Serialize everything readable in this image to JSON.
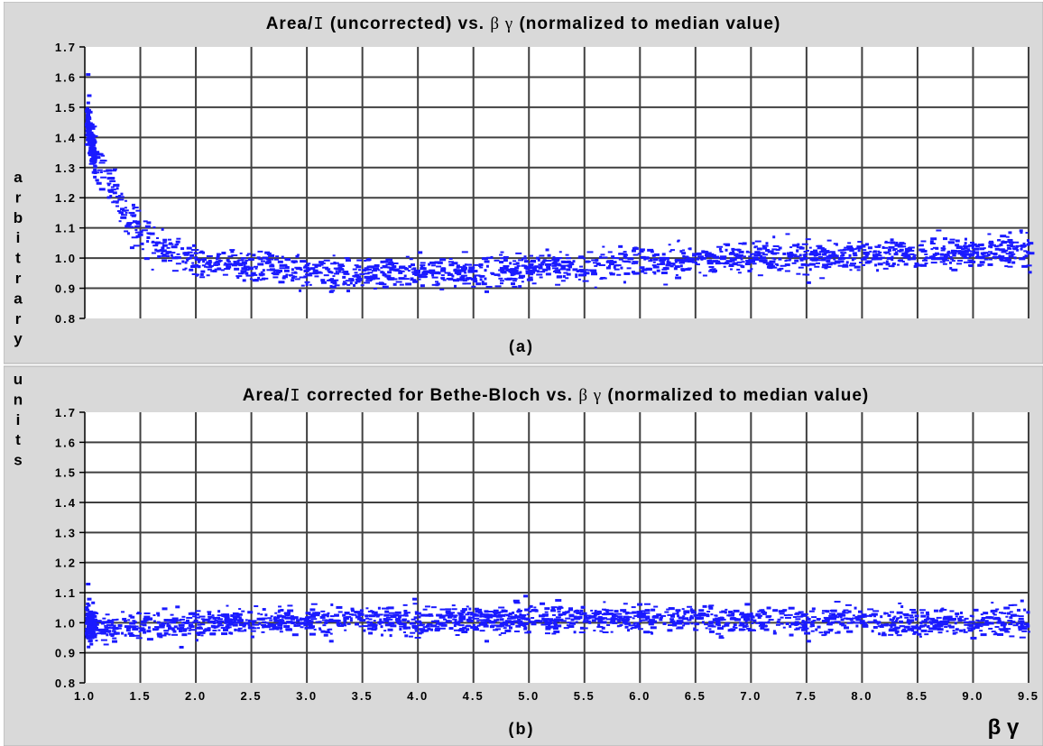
{
  "figure": {
    "ylabel_letters": [
      "a",
      "r",
      "b",
      "i",
      "t",
      "r",
      "a",
      "r",
      "y",
      "",
      "u",
      "n",
      "i",
      "t",
      "s"
    ],
    "xaxis_symbol": "β γ"
  },
  "chart_data": [
    {
      "type": "scatter",
      "title": "Area/I (uncorrected) vs. β γ (normalized to median value)",
      "title_parts": {
        "prefix": "Area/",
        "symbol": "I",
        "rest": " (uncorrected) vs. ",
        "greek": "β γ",
        "suffix": " (normalized to median value)"
      },
      "panel_label": "(a)",
      "xlabel": "β γ",
      "ylabel": "arbitrary units",
      "xlim": [
        1.0,
        9.5
      ],
      "ylim": [
        0.8,
        1.7
      ],
      "xticks": [
        "1.0",
        "1.5",
        "2.0",
        "2.5",
        "3.0",
        "3.5",
        "4.0",
        "4.5",
        "5.0",
        "5.5",
        "6.0",
        "6.5",
        "7.0",
        "7.5",
        "8.0",
        "8.5",
        "9.0",
        "9.5"
      ],
      "xtick_labels_visible": false,
      "yticks": [
        "0.8",
        "0.9",
        "1.0",
        "1.1",
        "1.2",
        "1.3",
        "1.4",
        "1.5",
        "1.6",
        "1.7"
      ],
      "grid": true,
      "marker_color": "#1a1aff",
      "trend": [
        [
          1.0,
          1.45
        ],
        [
          1.05,
          1.38
        ],
        [
          1.1,
          1.31
        ],
        [
          1.2,
          1.24
        ],
        [
          1.3,
          1.18
        ],
        [
          1.4,
          1.12
        ],
        [
          1.5,
          1.08
        ],
        [
          1.6,
          1.05
        ],
        [
          1.75,
          1.02
        ],
        [
          2.0,
          0.99
        ],
        [
          2.5,
          0.97
        ],
        [
          3.0,
          0.955
        ],
        [
          3.5,
          0.95
        ],
        [
          4.0,
          0.95
        ],
        [
          4.5,
          0.955
        ],
        [
          5.0,
          0.965
        ],
        [
          5.5,
          0.975
        ],
        [
          6.0,
          0.985
        ],
        [
          6.5,
          0.993
        ],
        [
          7.0,
          1.0
        ],
        [
          7.5,
          1.005
        ],
        [
          8.0,
          1.01
        ],
        [
          8.5,
          1.015
        ],
        [
          9.0,
          1.02
        ],
        [
          9.5,
          1.035
        ]
      ],
      "spread": 0.025,
      "n_points": 1700,
      "outliers": [
        [
          1.01,
          1.61
        ],
        [
          1.02,
          1.54
        ],
        [
          4.0,
          1.02
        ],
        [
          3.2,
          0.89
        ],
        [
          4.6,
          0.89
        ],
        [
          7.5,
          0.92
        ],
        [
          7.6,
          1.04
        ]
      ]
    },
    {
      "type": "scatter",
      "title": "Area/I corrected for Bethe-Bloch vs. β γ (normalized to median value)",
      "title_parts": {
        "prefix": "Area/",
        "symbol": "I",
        "rest": " corrected for Bethe-Bloch vs. ",
        "greek": "β γ",
        "suffix": " (normalized to median value)"
      },
      "panel_label": "(b)",
      "xlabel": "β γ",
      "ylabel": "arbitrary units",
      "xlim": [
        1.0,
        9.5
      ],
      "ylim": [
        0.8,
        1.7
      ],
      "xticks": [
        "1.0",
        "1.5",
        "2.0",
        "2.5",
        "3.0",
        "3.5",
        "4.0",
        "4.5",
        "5.0",
        "5.5",
        "6.0",
        "6.5",
        "7.0",
        "7.5",
        "8.0",
        "8.5",
        "9.0",
        "9.5"
      ],
      "xtick_labels_visible": true,
      "yticks": [
        "0.8",
        "0.9",
        "1.0",
        "1.1",
        "1.2",
        "1.3",
        "1.4",
        "1.5",
        "1.6",
        "1.7"
      ],
      "grid": true,
      "marker_color": "#1a1aff",
      "trend": [
        [
          1.0,
          1.0
        ],
        [
          1.2,
          0.985
        ],
        [
          1.5,
          0.99
        ],
        [
          2.0,
          0.995
        ],
        [
          2.5,
          1.005
        ],
        [
          3.0,
          1.008
        ],
        [
          3.5,
          1.01
        ],
        [
          4.0,
          1.008
        ],
        [
          4.5,
          1.01
        ],
        [
          5.0,
          1.015
        ],
        [
          5.5,
          1.012
        ],
        [
          6.0,
          1.015
        ],
        [
          6.5,
          1.012
        ],
        [
          7.0,
          1.01
        ],
        [
          7.5,
          1.008
        ],
        [
          8.0,
          1.005
        ],
        [
          8.5,
          1.003
        ],
        [
          9.0,
          1.0
        ],
        [
          9.5,
          1.01
        ]
      ],
      "spread": 0.022,
      "n_points": 1700,
      "outliers": [
        [
          1.01,
          1.13
        ],
        [
          1.02,
          1.08
        ],
        [
          4.95,
          1.09
        ],
        [
          3.95,
          1.08
        ],
        [
          7.5,
          0.94
        ],
        [
          3.2,
          0.94
        ],
        [
          4.6,
          0.94
        ],
        [
          1.85,
          0.92
        ]
      ]
    }
  ]
}
